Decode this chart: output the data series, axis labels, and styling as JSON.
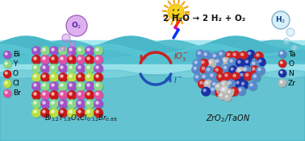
{
  "bg_color": "#7dd8e0",
  "water_light": "#a8e8f0",
  "water_dark": "#4ab8c8",
  "white": "#ffffff",
  "title_text": "2 H₂O → 2 H₂ + O₂",
  "formula_left": "Bi$_{1.2}$Y$_{1.8}$O$_{4}$Cl$_{0.12}$Br$_{0.88}$",
  "formula_right": "ZrO$_2$/TaON",
  "legend_left": [
    {
      "label": "Bi",
      "color": "#a050c8"
    },
    {
      "label": "Y",
      "color": "#88d888"
    },
    {
      "label": "O",
      "color": "#cc1818"
    },
    {
      "label": "Cl",
      "color": "#b8e040"
    },
    {
      "label": "Br",
      "color": "#e050a0"
    }
  ],
  "legend_right": [
    {
      "label": "Ta",
      "color": "#5888cc"
    },
    {
      "label": "O",
      "color": "#cc2020"
    },
    {
      "label": "N",
      "color": "#1830a8"
    },
    {
      "label": "Zr",
      "color": "#b8b8b8"
    }
  ],
  "o2_color": "#cc88e8",
  "o2_edge": "#9050b0",
  "h2_color": "#c0e8f8",
  "h2_edge": "#6090b0",
  "io3_color": "#cc2020",
  "i_color": "#2050b8",
  "sun_body": "#f8d020",
  "sun_ray": "#f0a000",
  "crystal_rows": [
    [
      "#a050c8",
      "#88d888",
      "#a050c8",
      "#88d888",
      "#a050c8",
      "#88d888",
      "#a050c8",
      "#88d888"
    ],
    [
      "#cc1818",
      "#e050a0",
      "#cc1818",
      "#e050a0",
      "#cc1818",
      "#e050a0",
      "#cc1818",
      "#e050a0"
    ],
    [
      "#88d888",
      "#a050c8",
      "#88d888",
      "#a050c8",
      "#88d888",
      "#a050c8",
      "#88d888",
      "#a050c8"
    ],
    [
      "#b8e040",
      "#cc1818",
      "#b8e040",
      "#cc1818",
      "#b8e040",
      "#cc1818",
      "#b8e040",
      "#cc1818"
    ],
    [
      "#a050c8",
      "#88d888",
      "#a050c8",
      "#88d888",
      "#a050c8",
      "#88d888",
      "#a050c8",
      "#88d888"
    ],
    [
      "#cc1818",
      "#e050a0",
      "#cc1818",
      "#e050a0",
      "#cc1818",
      "#e050a0",
      "#cc1818",
      "#e050a0"
    ],
    [
      "#88d888",
      "#a050c8",
      "#88d888",
      "#a050c8",
      "#88d888",
      "#a050c8",
      "#88d888",
      "#a050c8"
    ],
    [
      "#b8e040",
      "#cc1818",
      "#b8e040",
      "#cc1818",
      "#b8e040",
      "#cc1818",
      "#b8e040",
      "#cc1818"
    ]
  ]
}
